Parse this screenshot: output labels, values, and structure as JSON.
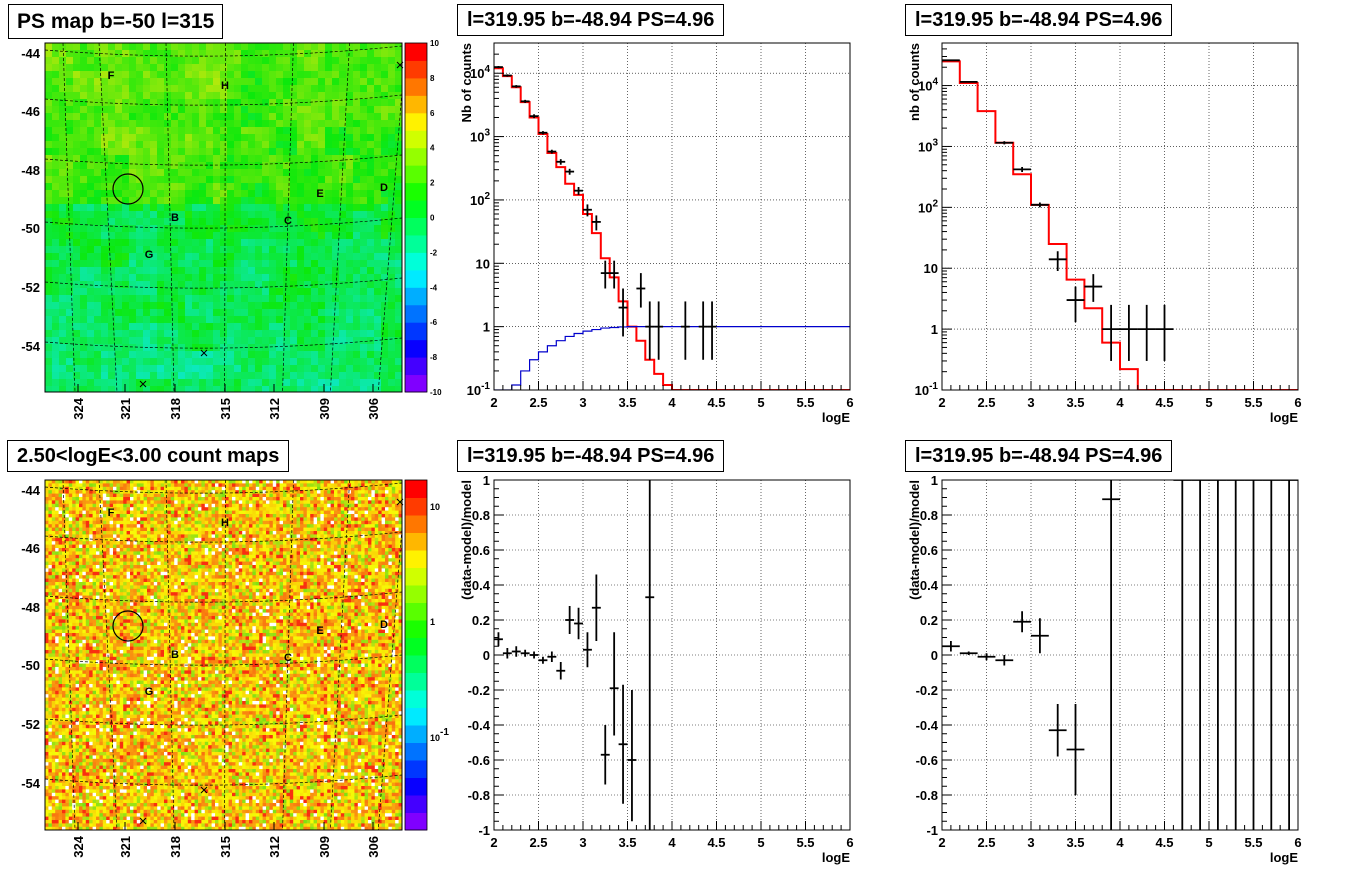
{
  "colors": {
    "model_line": "#ff0000",
    "prior_line": "#0000cc",
    "data_marks": "#000000"
  },
  "titles": {
    "ps_map": "PS map b=-50 l=315",
    "count_map": "2.50<logE<3.00 count maps",
    "spec1": "l=319.95 b=-48.94 PS=4.96",
    "spec2": "l=319.95 b=-48.94 PS=4.96",
    "res1": "l=319.95 b=-48.94 PS=4.96",
    "res2": "l=319.95 b=-48.94 PS=4.96"
  },
  "maps": {
    "b_ticks": [
      "-44",
      "-46",
      "-48",
      "-50",
      "-52",
      "-54"
    ],
    "l_ticks": [
      "324",
      "321",
      "318",
      "315",
      "312",
      "309",
      "306"
    ],
    "source_labels": [
      "F",
      "H",
      "E",
      "D",
      "B",
      "C",
      "G"
    ],
    "ps_colorbar_ticks": [
      "10",
      "8",
      "6",
      "4",
      "2",
      "0",
      "-2",
      "-4",
      "-6",
      "-8",
      "-10"
    ],
    "count_colorbar_ticks": [
      "10",
      "1",
      "10^-1"
    ]
  },
  "chart_data": [
    {
      "type": "line",
      "title": "l=319.95 b=-48.94 PS=4.96",
      "xlabel": "logE",
      "ylabel": "Nb of counts",
      "xlim": [
        2,
        6
      ],
      "ylim": [
        0.1,
        30000
      ],
      "yscale": "log",
      "grid": true,
      "x_ticks": [
        "2",
        "2.5",
        "3",
        "3.5",
        "4",
        "4.5",
        "5",
        "5.5",
        "6"
      ],
      "y_ticks": [
        "10^{-1}",
        "1",
        "10",
        "10^{2}",
        "10^{3}",
        "10^{4}"
      ],
      "series": [
        {
          "style": "step",
          "color": "#ff0000",
          "bin_width": 0.1,
          "x": [
            2.0,
            2.1,
            2.2,
            2.3,
            2.4,
            2.5,
            2.6,
            2.7,
            2.8,
            2.9,
            3.0,
            3.1,
            3.2,
            3.3,
            3.4,
            3.5,
            3.6,
            3.7,
            3.8,
            3.9,
            4.0,
            4.1,
            4.2,
            4.3,
            4.4,
            4.5,
            4.6,
            4.7,
            4.8,
            4.9,
            5.0,
            5.1,
            5.2,
            5.3,
            5.4,
            5.5,
            5.6,
            5.7,
            5.8,
            5.9
          ],
          "y": [
            12000,
            9000,
            6000,
            3500,
            2000,
            1100,
            550,
            330,
            180,
            120,
            60,
            30,
            12,
            6,
            2.5,
            1.0,
            0.6,
            0.3,
            0.18,
            0.12,
            0.1,
            0.1,
            0.1,
            0.1,
            0.1,
            0.1,
            0.1,
            0.1,
            0.1,
            0.1,
            0.1,
            0.1,
            0.1,
            0.1,
            0.1,
            0.1,
            0.1,
            0.1,
            0.1,
            0.1
          ]
        },
        {
          "style": "step",
          "color": "#0000cc",
          "bin_width": 0.1,
          "x": [
            2.0,
            2.1,
            2.2,
            2.3,
            2.4,
            2.5,
            2.6,
            2.7,
            2.8,
            2.9,
            3.0,
            3.1,
            3.2,
            3.3,
            3.4,
            3.5,
            3.6,
            3.7,
            3.8,
            3.9,
            4.0,
            4.1,
            4.2,
            4.3,
            4.4,
            4.5,
            4.6,
            4.7,
            4.8,
            4.9,
            5.0,
            5.1,
            5.2,
            5.3,
            5.4,
            5.5,
            5.6,
            5.7,
            5.8,
            5.9
          ],
          "y": [
            0.02,
            0.06,
            0.12,
            0.2,
            0.3,
            0.4,
            0.5,
            0.6,
            0.7,
            0.78,
            0.85,
            0.9,
            0.95,
            0.97,
            0.99,
            1,
            1,
            1,
            1,
            1,
            1,
            1,
            1,
            1,
            1,
            1,
            1,
            1,
            1,
            1,
            1,
            1,
            1,
            1,
            1,
            1,
            1,
            1,
            1,
            1
          ]
        },
        {
          "style": "errorbar",
          "color": "#000000",
          "x": [
            2.05,
            2.15,
            2.25,
            2.35,
            2.45,
            2.55,
            2.65,
            2.75,
            2.85,
            2.95,
            3.05,
            3.15,
            3.25,
            3.35,
            3.45,
            3.65,
            3.75,
            3.85,
            4.15,
            4.35,
            4.45
          ],
          "xerr": 0.05,
          "y": [
            12500,
            9200,
            6200,
            3600,
            2100,
            1150,
            580,
            400,
            280,
            140,
            70,
            45,
            7,
            7,
            2,
            4,
            1,
            1,
            1,
            1,
            1
          ],
          "ylo": [
            12000,
            8800,
            5900,
            3400,
            1950,
            1080,
            540,
            360,
            250,
            120,
            55,
            33,
            4,
            4,
            0.7,
            2,
            0.3,
            0.3,
            0.3,
            0.3,
            0.3
          ],
          "yhi": [
            13000,
            9600,
            6500,
            3800,
            2250,
            1220,
            620,
            440,
            310,
            160,
            85,
            57,
            11,
            11,
            4,
            7,
            2.5,
            2.5,
            2.5,
            2.5,
            2.5
          ]
        }
      ]
    },
    {
      "type": "line",
      "title": "l=319.95 b=-48.94 PS=4.96",
      "xlabel": "logE",
      "ylabel": "nb of counts",
      "xlim": [
        2,
        6
      ],
      "ylim": [
        0.1,
        50000
      ],
      "yscale": "log",
      "grid": true,
      "x_ticks": [
        "2",
        "2.5",
        "3",
        "3.5",
        "4",
        "4.5",
        "5",
        "5.5",
        "6"
      ],
      "y_ticks": [
        "10^{-1}",
        "1",
        "10",
        "10^{2}",
        "10^{3}",
        "10^{4}"
      ],
      "series": [
        {
          "style": "step",
          "color": "#ff0000",
          "bin_width": 0.2,
          "x": [
            2.0,
            2.2,
            2.4,
            2.6,
            2.8,
            3.0,
            3.2,
            3.4,
            3.6,
            3.8,
            4.0,
            4.2,
            4.4,
            4.6,
            4.8,
            5.0,
            5.2,
            5.4,
            5.6,
            5.8
          ],
          "y": [
            25000,
            11000,
            3800,
            1150,
            350,
            110,
            25,
            6.5,
            2.2,
            0.6,
            0.22,
            0.1,
            0.1,
            0.1,
            0.1,
            0.1,
            0.1,
            0.1,
            0.1,
            0.1
          ]
        },
        {
          "style": "errorbar",
          "color": "#000000",
          "x": [
            2.1,
            2.3,
            2.7,
            2.9,
            3.1,
            3.3,
            3.5,
            3.7,
            3.9,
            4.1,
            4.3,
            4.5
          ],
          "xerr": 0.1,
          "y": [
            26000,
            11500,
            1150,
            420,
            110,
            14,
            3,
            5,
            1,
            1,
            1,
            1
          ],
          "ylo": [
            25500,
            11200,
            1080,
            380,
            100,
            9,
            1.3,
            2.8,
            0.3,
            0.3,
            0.3,
            0.3
          ],
          "yhi": [
            26500,
            11800,
            1220,
            460,
            120,
            19,
            5,
            8,
            2.5,
            2.5,
            2.5,
            2.5
          ]
        }
      ]
    },
    {
      "type": "scatter",
      "title": "l=319.95 b=-48.94 PS=4.96",
      "xlabel": "logE",
      "ylabel": "(data-model)/model",
      "xlim": [
        2,
        6
      ],
      "ylim": [
        -1,
        1
      ],
      "grid": true,
      "x_ticks": [
        "2",
        "2.5",
        "3",
        "3.5",
        "4",
        "4.5",
        "5",
        "5.5",
        "6"
      ],
      "y_ticks": [
        "-1",
        "-0.8",
        "-0.6",
        "-0.4",
        "-0.2",
        "0",
        "0.2",
        "0.4",
        "0.6",
        "0.8",
        "1"
      ],
      "series": [
        {
          "style": "errorbar",
          "color": "#000000",
          "x": [
            2.05,
            2.15,
            2.25,
            2.35,
            2.45,
            2.55,
            2.65,
            2.75,
            2.85,
            2.95,
            3.05,
            3.15,
            3.25,
            3.35,
            3.45,
            3.55,
            3.75
          ],
          "xerr": 0.05,
          "y": [
            0.09,
            0.01,
            0.02,
            0.01,
            0.0,
            -0.03,
            -0.01,
            -0.09,
            0.2,
            0.18,
            0.03,
            0.27,
            -0.57,
            -0.19,
            -0.51,
            -0.6,
            0.33
          ],
          "ylo": [
            0.05,
            -0.02,
            -0.01,
            -0.01,
            -0.02,
            -0.05,
            -0.04,
            -0.14,
            0.12,
            0.09,
            -0.07,
            0.08,
            -0.74,
            -0.46,
            -0.85,
            -0.95,
            -1.0
          ],
          "yhi": [
            0.13,
            0.04,
            0.05,
            0.03,
            0.02,
            -0.01,
            0.02,
            -0.04,
            0.28,
            0.27,
            0.13,
            0.46,
            -0.4,
            0.13,
            -0.17,
            -0.2,
            1.0
          ]
        }
      ]
    },
    {
      "type": "scatter",
      "title": "l=319.95 b=-48.94 PS=4.96",
      "xlabel": "logE",
      "ylabel": "(data-model)/model",
      "xlim": [
        2,
        6
      ],
      "ylim": [
        -1,
        1
      ],
      "grid": true,
      "x_ticks": [
        "2",
        "2.5",
        "3",
        "3.5",
        "4",
        "4.5",
        "5",
        "5.5",
        "6"
      ],
      "y_ticks": [
        "-1",
        "-0.8",
        "-0.6",
        "-0.4",
        "-0.2",
        "0",
        "0.2",
        "0.4",
        "0.6",
        "0.8",
        "1"
      ],
      "series": [
        {
          "style": "errorbar",
          "color": "#000000",
          "x": [
            2.1,
            2.3,
            2.5,
            2.7,
            2.9,
            3.1,
            3.3,
            3.5,
            3.9,
            4.7,
            4.9,
            5.1,
            5.3,
            5.5,
            5.7,
            5.9
          ],
          "xerr": 0.1,
          "y": [
            0.05,
            0.01,
            -0.01,
            -0.03,
            0.19,
            0.11,
            -0.43,
            -0.54,
            0.89,
            1,
            1,
            1,
            1,
            1,
            1,
            1
          ],
          "ylo": [
            0.02,
            0.0,
            -0.03,
            -0.06,
            0.13,
            0.01,
            -0.58,
            -0.8,
            -1.0,
            -1,
            -1,
            -1,
            -1,
            -1,
            -1,
            -1
          ],
          "yhi": [
            0.08,
            0.02,
            0.01,
            0.0,
            0.25,
            0.21,
            -0.28,
            -0.28,
            1.0,
            1,
            1,
            1,
            1,
            1,
            1,
            1
          ]
        }
      ]
    }
  ]
}
